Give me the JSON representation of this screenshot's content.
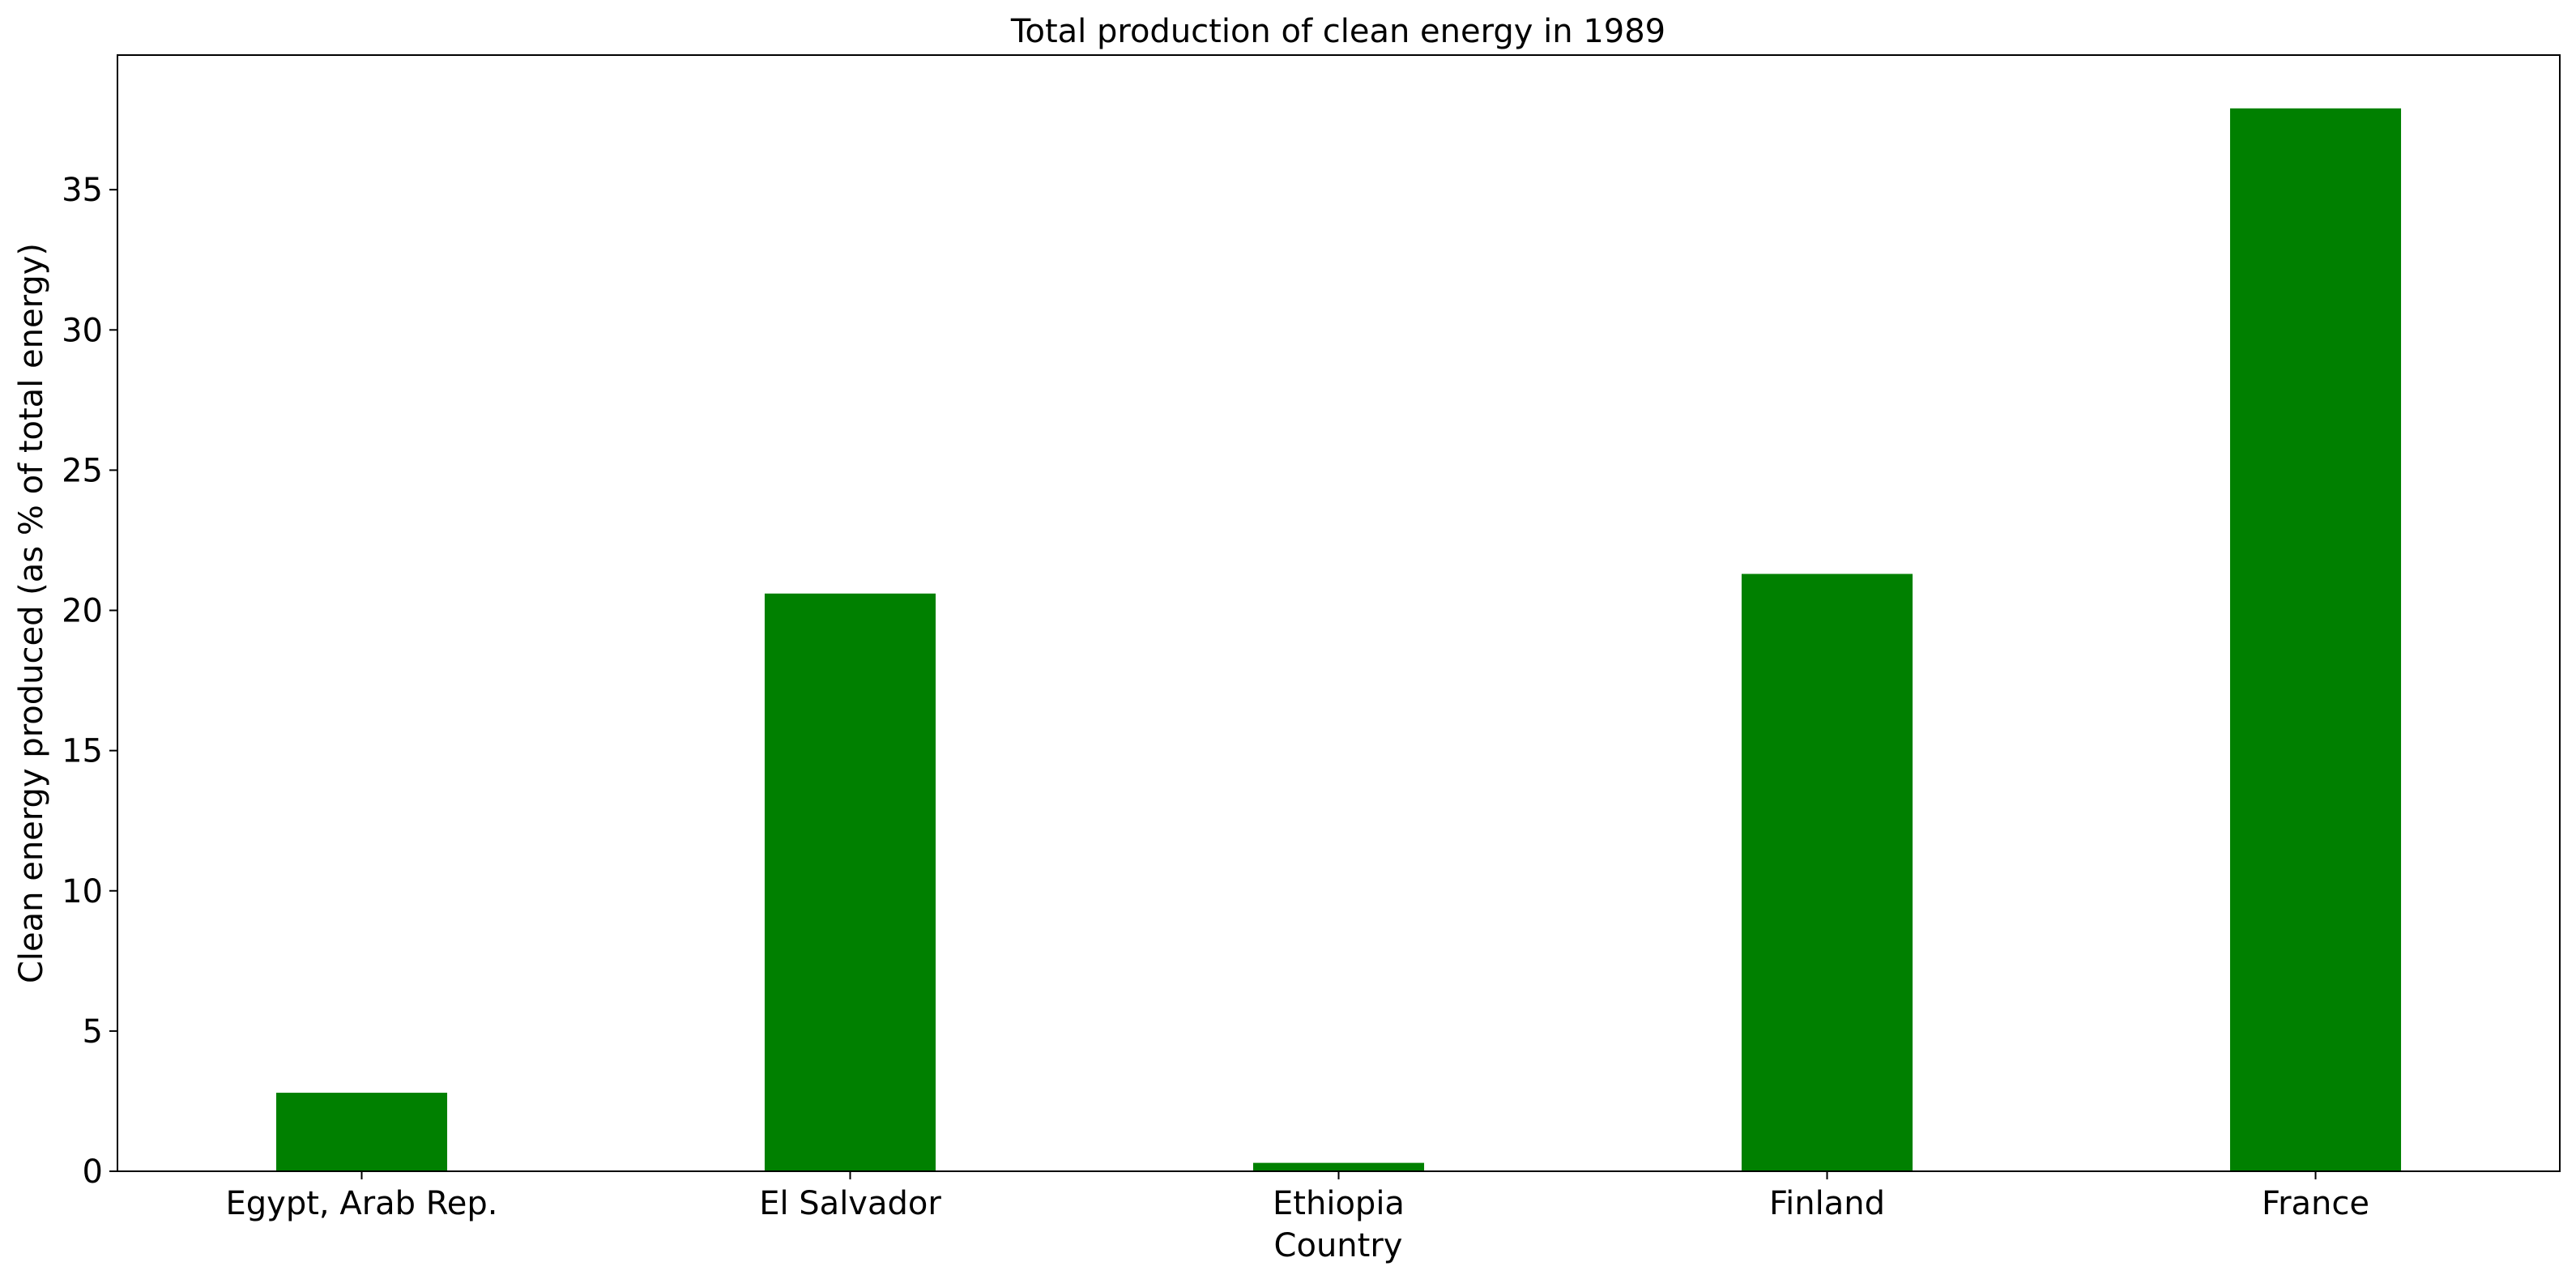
{
  "chart_data": {
    "type": "bar",
    "title": "Total production of clean energy in 1989",
    "xlabel": "Country",
    "ylabel": "Clean energy produced (as % of total energy)",
    "categories": [
      "Egypt, Arab Rep.",
      "El Salvador",
      "Ethiopia",
      "Finland",
      "France"
    ],
    "values": [
      2.8,
      20.6,
      0.3,
      21.3,
      37.9
    ],
    "ylim": [
      0,
      39.8
    ],
    "yticks": [
      0,
      5,
      10,
      15,
      20,
      25,
      30,
      35
    ],
    "bar_color": "#008000",
    "grid": false,
    "legend": "none"
  }
}
